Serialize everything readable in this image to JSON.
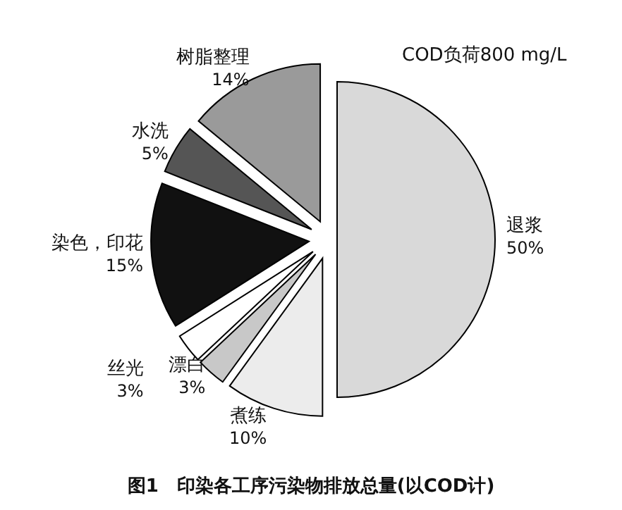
{
  "chart_data": {
    "type": "pie",
    "title": "图1　印染各工序污染物排放总量(以COD计)",
    "annotations": [
      "COD负荷800 mg/L"
    ],
    "categories": [
      "退浆",
      "煮练",
      "漂白",
      "丝光",
      "染色，印花",
      "水洗",
      "树脂整理"
    ],
    "values": [
      50,
      10,
      3,
      3,
      15,
      5,
      14
    ],
    "value_labels": [
      "50%",
      "10%",
      "3%",
      "3%",
      "15%",
      "5%",
      "14%"
    ],
    "colors": [
      "#d9d9d9",
      "#ececec",
      "#c8c8c8",
      "#ffffff",
      "#111111",
      "#555555",
      "#9a9a9a"
    ],
    "legend": false
  }
}
